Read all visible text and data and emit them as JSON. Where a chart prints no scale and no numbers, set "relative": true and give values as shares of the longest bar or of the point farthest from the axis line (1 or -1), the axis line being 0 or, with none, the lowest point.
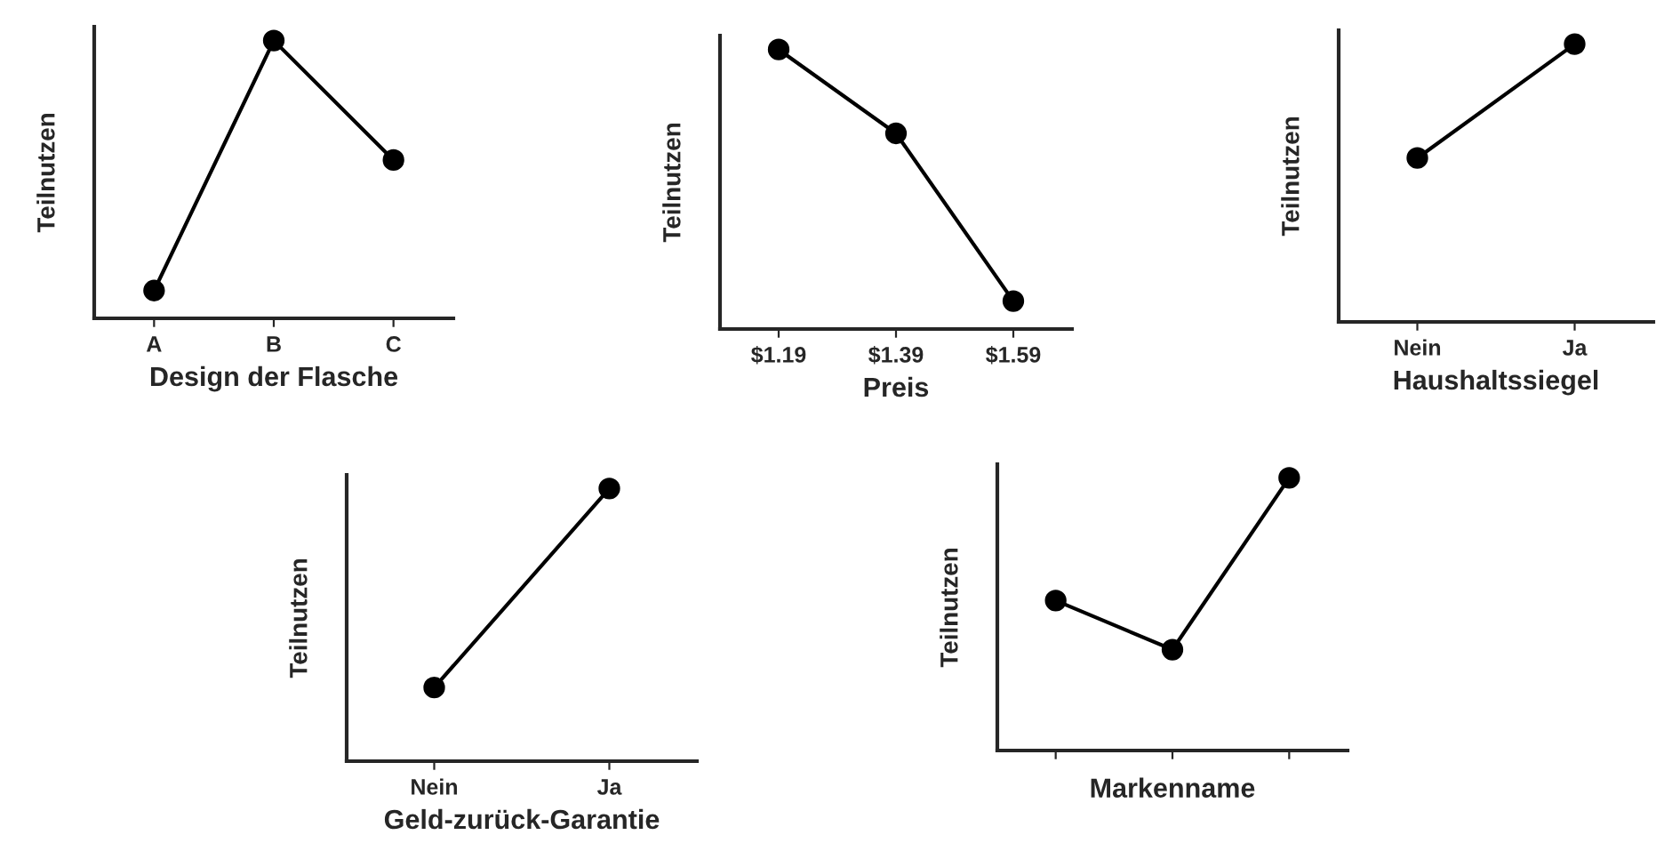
{
  "chart_data": [
    {
      "type": "line",
      "relative": true,
      "xlabel": "Design der Flasche",
      "ylabel": "Teilnutzen",
      "categories": [
        "A",
        "B",
        "C"
      ],
      "series": [
        {
          "color": "#000000",
          "values": [
            0.1,
            1,
            0.57
          ]
        }
      ],
      "marker": "circle",
      "line_style": "solid"
    },
    {
      "type": "line",
      "relative": true,
      "xlabel": "Preis",
      "ylabel": "Teilnutzen",
      "categories": [
        "$1.19",
        "$1.39",
        "$1.59"
      ],
      "series": [
        {
          "color": "#000000",
          "values": [
            1,
            0.7,
            0.1
          ]
        }
      ],
      "marker": "circle",
      "line_style": "solid"
    },
    {
      "type": "line",
      "relative": true,
      "xlabel": "Haushaltssiegel",
      "ylabel": "Teilnutzen",
      "categories": [
        "Nein",
        "Ja"
      ],
      "series": [
        {
          "color": "#000000",
          "values": [
            0.59,
            1
          ]
        }
      ],
      "marker": "circle",
      "line_style": "solid"
    },
    {
      "type": "line",
      "relative": true,
      "xlabel": "Geld-zurück-Garantie",
      "ylabel": "Teilnutzen",
      "categories": [
        "Nein",
        "Ja"
      ],
      "series": [
        {
          "color": "#000000",
          "values": [
            0.27,
            1
          ]
        }
      ],
      "marker": "circle",
      "line_style": "solid"
    },
    {
      "type": "line",
      "relative": true,
      "xlabel": "Markenname",
      "ylabel": "Teilnutzen",
      "categories": [
        null,
        null,
        null
      ],
      "series": [
        {
          "color": "#000000",
          "values": [
            0.55,
            0.37,
            1
          ]
        }
      ],
      "marker": "circle",
      "line_style": "solid"
    }
  ]
}
